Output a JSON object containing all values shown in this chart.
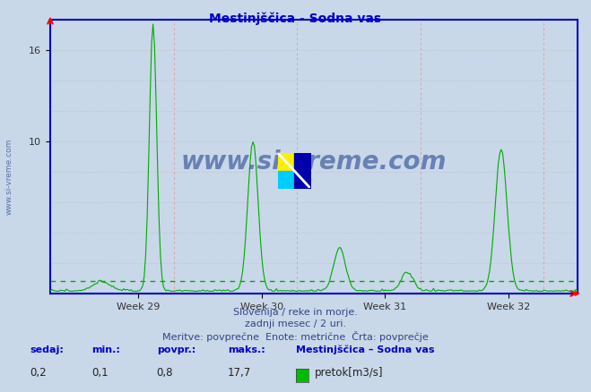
{
  "title": "Mestinjščica - Sodna vas",
  "title_color": "#0000cc",
  "bg_color": "#c8d8e8",
  "plot_bg_color": "#c8d8e8",
  "line_color": "#00aa00",
  "avg_line_color": "#00aa00",
  "avg_value": 0.8,
  "y_min": 0,
  "y_max": 18.0,
  "x_tick_labels": [
    "Week 29",
    "Week 30",
    "Week 31",
    "Week 32"
  ],
  "subtitle1": "Slovenija / reke in morje.",
  "subtitle2": "zadnji mesec / 2 uri.",
  "subtitle3": "Meritve: povprečne  Enote: metrične  Črta: povprečje",
  "legend_title": "Mestinjščica – Sodna vas",
  "legend_label": "pretok[m3/s]",
  "legend_color": "#00bb00",
  "stats_sedaj": "0,2",
  "stats_min": "0,1",
  "stats_povpr": "0,8",
  "stats_maks": "17,7",
  "watermark": "www.si-vreme.com",
  "watermark_color": "#1a3a8a",
  "border_color": "#0000cc",
  "grid_color_h": "#bbbbbb",
  "grid_color_v": "#ee8888",
  "n_points": 360
}
